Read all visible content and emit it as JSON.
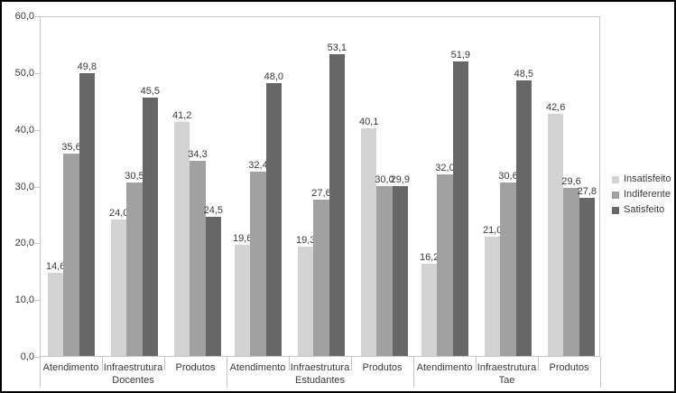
{
  "chart_data": {
    "type": "bar",
    "title": "",
    "xlabel": "",
    "ylabel": "",
    "ylim": [
      0,
      60
    ],
    "ytick_values": [
      0,
      10,
      20,
      30,
      40,
      50,
      60
    ],
    "decimal_separator": ",",
    "grid": false,
    "legend_position": "right",
    "groups": [
      {
        "label": "Docentes",
        "categories": [
          "Atendimento",
          "Infraestrutura",
          "Produtos"
        ]
      },
      {
        "label": "Estudantes",
        "categories": [
          "Atendimento",
          "Infraestrutura",
          "Produtos"
        ]
      },
      {
        "label": "Tae",
        "categories": [
          "Atendimento",
          "Infraestrutura",
          "Produtos"
        ]
      }
    ],
    "series": [
      {
        "name": "Insatisfeito",
        "color": "#d3d3d3",
        "values": [
          14.6,
          24.0,
          41.2,
          19.6,
          19.3,
          40.1,
          16.2,
          21.0,
          42.6
        ]
      },
      {
        "name": "Indiferente",
        "color": "#a1a1a1",
        "values": [
          35.6,
          30.5,
          34.3,
          32.4,
          27.6,
          30.0,
          32.0,
          30.6,
          29.6
        ]
      },
      {
        "name": "Satisfeito",
        "color": "#676767",
        "values": [
          49.8,
          45.5,
          24.5,
          48.0,
          53.1,
          29.9,
          51.9,
          48.5,
          27.8
        ]
      }
    ],
    "colors": {
      "axis": "#c6c6c6",
      "text": "#3a3a3a",
      "background": "#ffffff",
      "frame": "#000000"
    }
  }
}
